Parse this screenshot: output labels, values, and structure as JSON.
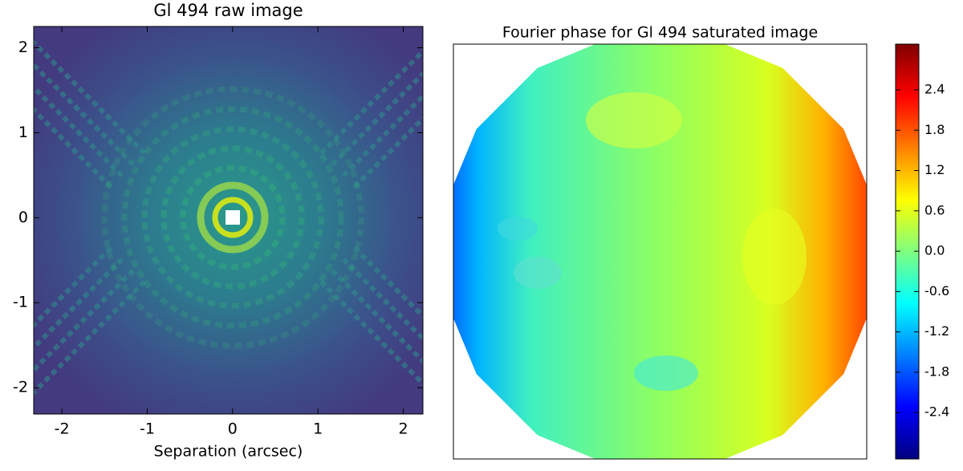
{
  "chart_data": [
    {
      "type": "image",
      "title": "Gl 494 raw image",
      "x_label": "Separation (arcsec)",
      "xlim": [
        -2.33,
        2.23
      ],
      "ylim": [
        -2.31,
        2.25
      ],
      "xticks": [
        -2,
        -1,
        0,
        1,
        2
      ],
      "yticks": [
        -2,
        -1,
        0,
        1,
        2
      ]
    },
    {
      "type": "phase",
      "title": "Fourier phase for Gl 494 saturated image",
      "colorbar_lim": [
        -3.09,
        3.08
      ],
      "colorbar_ticks": [
        -2.4,
        -1.8,
        -1.2,
        -0.6,
        {
          "value": 0,
          "label": "0.0"
        },
        0.6,
        1.2,
        1.8,
        2.4
      ]
    }
  ]
}
